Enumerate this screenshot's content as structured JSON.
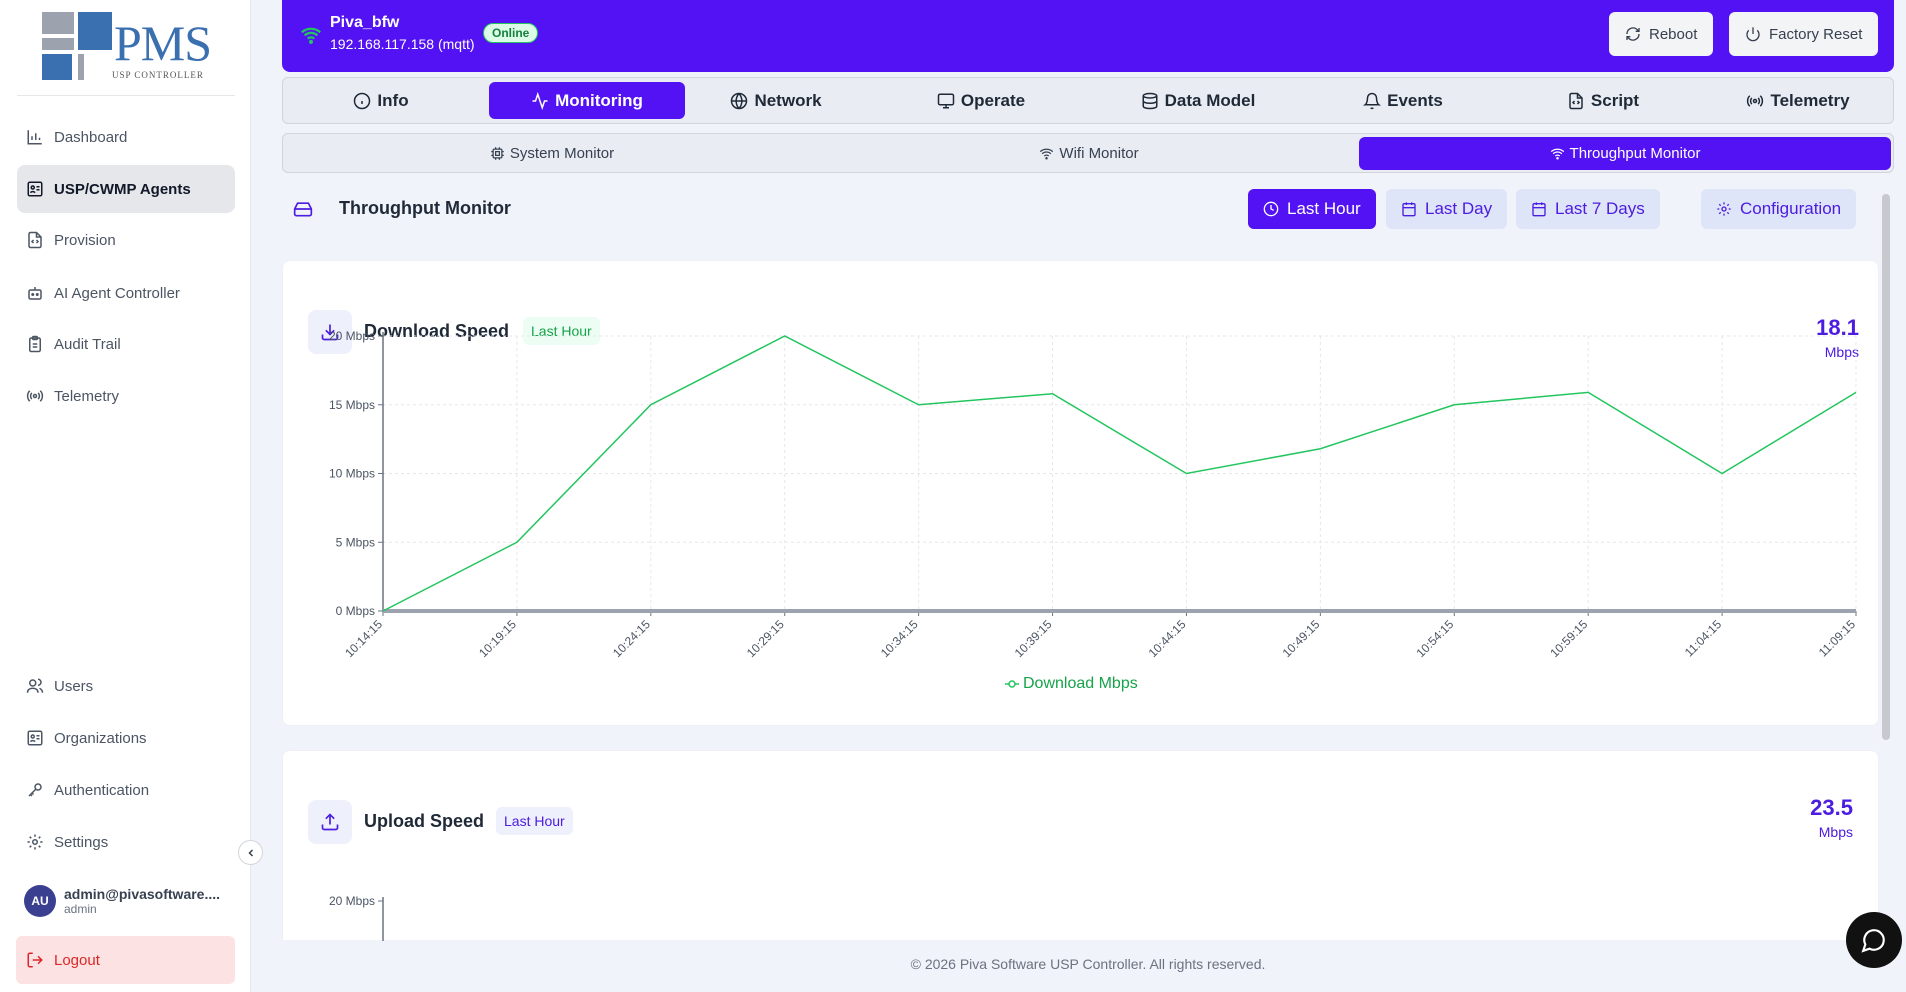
{
  "sidebar": {
    "logo": {
      "text": "PMS",
      "subtitle": "USP CONTROLLER"
    },
    "items": [
      {
        "label": "Dashboard",
        "icon": "bar-chart-icon"
      },
      {
        "label": "USP/CWMP Agents",
        "icon": "agent-icon",
        "active": true
      },
      {
        "label": "Provision",
        "icon": "file-code-icon"
      },
      {
        "label": "AI Agent Controller",
        "icon": "bot-icon"
      },
      {
        "label": "Audit Trail",
        "icon": "clipboard-icon"
      },
      {
        "label": "Telemetry",
        "icon": "radio-icon"
      }
    ],
    "bottom_items": [
      {
        "label": "Users",
        "icon": "users-icon"
      },
      {
        "label": "Organizations",
        "icon": "building-icon"
      },
      {
        "label": "Authentication",
        "icon": "key-icon"
      },
      {
        "label": "Settings",
        "icon": "gear-icon"
      }
    ],
    "user": {
      "initials": "AU",
      "email": "admin@pivasoftware....",
      "role": "admin"
    },
    "logout_label": "Logout"
  },
  "header": {
    "agent_name": "Piva_bfw",
    "agent_address": "192.168.117.158 (mqtt)",
    "status": "Online",
    "reboot_label": "Reboot",
    "factory_reset_label": "Factory Reset"
  },
  "tabs": [
    {
      "label": "Info",
      "icon": "info-icon"
    },
    {
      "label": "Monitoring",
      "icon": "activity-icon",
      "active": true
    },
    {
      "label": "Network",
      "icon": "globe-icon"
    },
    {
      "label": "Operate",
      "icon": "monitor-icon"
    },
    {
      "label": "Data Model",
      "icon": "database-icon"
    },
    {
      "label": "Events",
      "icon": "bell-icon"
    },
    {
      "label": "Script",
      "icon": "script-icon"
    },
    {
      "label": "Telemetry",
      "icon": "radio-icon"
    }
  ],
  "subtabs": [
    {
      "label": "System Monitor",
      "icon": "cpu-icon"
    },
    {
      "label": "Wifi Monitor",
      "icon": "wifi-icon"
    },
    {
      "label": "Throughput Monitor",
      "icon": "wifi-icon",
      "active": true
    }
  ],
  "section": {
    "title": "Throughput Monitor",
    "range_buttons": [
      {
        "label": "Last Hour",
        "active": true,
        "icon": "clock-icon"
      },
      {
        "label": "Last Day",
        "icon": "calendar-icon"
      },
      {
        "label": "Last 7 Days",
        "icon": "calendar-icon"
      }
    ],
    "config_label": "Configuration"
  },
  "download": {
    "title": "Download Speed",
    "badge": "Last Hour",
    "value": "18.1",
    "unit": "Mbps",
    "legend": "Download Mbps"
  },
  "upload": {
    "title": "Upload Speed",
    "badge": "Last Hour",
    "value": "23.5",
    "unit": "Mbps"
  },
  "chart_data": [
    {
      "type": "line",
      "x": [
        "10:14:15",
        "10:19:15",
        "10:24:15",
        "10:29:15",
        "10:34:15",
        "10:39:15",
        "10:44:15",
        "10:49:15",
        "10:54:15",
        "10:59:15",
        "11:04:15",
        "11:09:15"
      ],
      "series": [
        {
          "name": "Download Mbps",
          "values": [
            0,
            5,
            15,
            20,
            15,
            15.8,
            10,
            11.8,
            15,
            15.9,
            10,
            15.9
          ],
          "color": "#22c55e"
        }
      ],
      "yticks": [
        "0 Mbps",
        "5 Mbps",
        "10 Mbps",
        "15 Mbps",
        "20 Mbps"
      ],
      "ylim": [
        0,
        20
      ],
      "grid": true
    },
    {
      "type": "line",
      "yticks": [
        "20 Mbps"
      ]
    }
  ],
  "footer": "© 2026 Piva Software USP Controller. All rights reserved.",
  "colors": {
    "primary": "#5212f3",
    "line": "#22c55e"
  }
}
